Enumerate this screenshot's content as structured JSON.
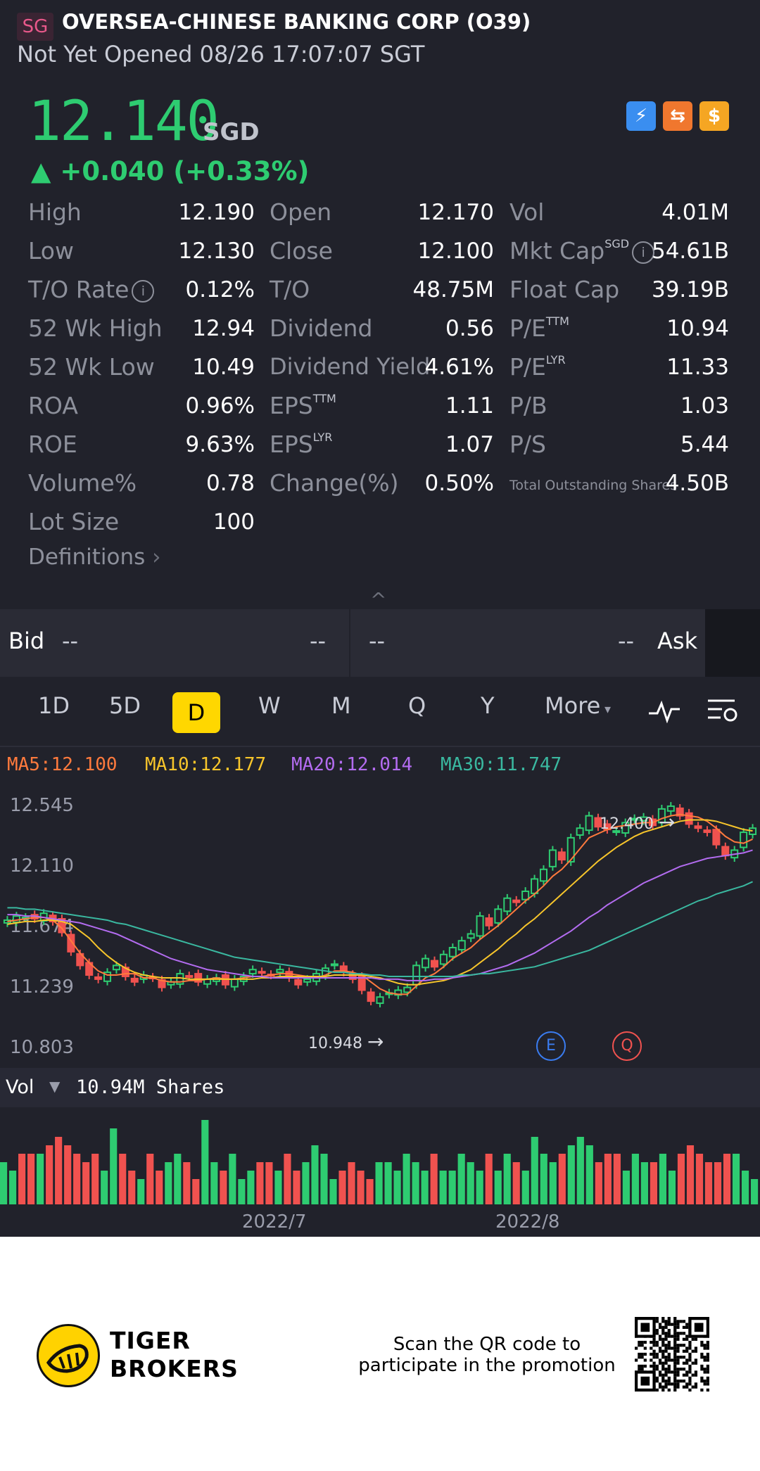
{
  "header": {
    "market_badge": "SG",
    "name": "OVERSEA-CHINESE BANKING CORP (O39)",
    "status": "Not Yet Opened 08/26 17:07:07 SGT"
  },
  "quote": {
    "price": "12.140",
    "currency": "SGD",
    "change": "▲ +0.040 (+0.33%)"
  },
  "stats": {
    "col1": [
      {
        "label": "High",
        "value": "12.190"
      },
      {
        "label": "Low",
        "value": "12.130"
      },
      {
        "label": "T/O Rate",
        "value": "0.12%"
      },
      {
        "label": "52 Wk High",
        "value": "12.94"
      },
      {
        "label": "52 Wk Low",
        "value": "10.49"
      },
      {
        "label": "ROA",
        "value": "0.96%"
      },
      {
        "label": "ROE",
        "value": "9.63%"
      },
      {
        "label": "Volume%",
        "value": "0.78"
      },
      {
        "label": "Lot Size",
        "value": "100"
      }
    ],
    "col2": [
      {
        "label": "Open",
        "value": "12.170"
      },
      {
        "label": "Close",
        "value": "12.100"
      },
      {
        "label": "T/O",
        "value": "48.75M"
      },
      {
        "label": "Dividend",
        "value": "0.56"
      },
      {
        "label": "Dividend Yield",
        "value": "4.61%"
      },
      {
        "label": "EPS",
        "sup": "TTM",
        "value": "1.11"
      },
      {
        "label": "EPS",
        "sup": "LYR",
        "value": "1.07"
      },
      {
        "label": "Change(%)",
        "value": "0.50%"
      }
    ],
    "col3": [
      {
        "label": "Vol",
        "value": "4.01M"
      },
      {
        "label": "Mkt Cap",
        "sup": "SGD",
        "value": "54.61B"
      },
      {
        "label": "Float Cap",
        "value": "39.19B"
      },
      {
        "label": "P/E",
        "sup": "TTM",
        "value": "10.94"
      },
      {
        "label": "P/E",
        "sup": "LYR",
        "value": "11.33"
      },
      {
        "label": "P/B",
        "value": "1.03"
      },
      {
        "label": "P/S",
        "value": "5.44"
      },
      {
        "label": "Total Outstanding Shares",
        "value": "4.50B"
      }
    ],
    "definitions": "Definitions"
  },
  "orderbook": {
    "bid_label": "Bid",
    "bid_price": "--",
    "bid_size": "--",
    "ask_price": "--",
    "ask_size": "--",
    "ask_label": "Ask"
  },
  "timeframes": [
    "1D",
    "5D",
    "D",
    "W",
    "M",
    "Q",
    "Y",
    "More"
  ],
  "active_timeframe": "D",
  "ma": [
    {
      "label": "MA5:12.100",
      "color": "#ff7a3d"
    },
    {
      "label": "MA10:12.177",
      "color": "#f7c52b"
    },
    {
      "label": "MA20:12.014",
      "color": "#b36cf0"
    },
    {
      "label": "MA30:11.747",
      "color": "#3ab8a0"
    }
  ],
  "chart_data": {
    "type": "candlestick",
    "y_axis_ticks": [
      "12.545",
      "12.110",
      "11.674",
      "11.239",
      "10.803"
    ],
    "ylim": [
      10.803,
      12.545
    ],
    "high_marker": "12.400",
    "low_marker": "10.948",
    "event_markers": [
      "E",
      "Q"
    ],
    "x_ticks": [
      "2022/7",
      "2022/8"
    ],
    "up_color": "#2ecc71",
    "down_color": "#f0524f",
    "close": [
      11.71,
      11.74,
      11.73,
      11.72,
      11.76,
      11.7,
      11.62,
      11.48,
      11.38,
      11.31,
      11.28,
      11.33,
      11.38,
      11.3,
      11.26,
      11.31,
      11.29,
      11.22,
      11.26,
      11.32,
      11.3,
      11.26,
      11.28,
      11.29,
      11.24,
      11.28,
      11.3,
      11.35,
      11.33,
      11.31,
      11.35,
      11.29,
      11.24,
      11.28,
      11.32,
      11.36,
      11.39,
      11.33,
      11.28,
      11.2,
      11.12,
      11.15,
      11.18,
      11.2,
      11.22,
      11.38,
      11.43,
      11.37,
      11.46,
      11.51,
      11.56,
      11.61,
      11.74,
      11.67,
      11.79,
      11.87,
      11.84,
      11.92,
      12.01,
      12.08,
      12.22,
      12.15,
      12.31,
      12.38,
      12.47,
      12.39,
      12.37,
      12.36,
      12.42,
      12.45,
      12.46,
      12.4,
      12.52,
      12.54,
      12.47,
      12.41,
      12.38,
      12.35,
      12.26,
      12.18,
      12.22,
      12.35,
      12.38
    ],
    "ma5": [
      11.7,
      11.71,
      11.72,
      11.73,
      11.73,
      11.71,
      11.65,
      11.56,
      11.47,
      11.4,
      11.34,
      11.31,
      11.31,
      11.32,
      11.32,
      11.29,
      11.29,
      11.27,
      11.26,
      11.26,
      11.27,
      11.27,
      11.28,
      11.29,
      11.28,
      11.28,
      11.29,
      11.3,
      11.3,
      11.31,
      11.32,
      11.32,
      11.31,
      11.3,
      11.29,
      11.31,
      11.34,
      11.34,
      11.33,
      11.31,
      11.26,
      11.21,
      11.18,
      11.17,
      11.17,
      11.23,
      11.29,
      11.32,
      11.37,
      11.43,
      11.47,
      11.51,
      11.57,
      11.62,
      11.67,
      11.73,
      11.79,
      11.85,
      11.9,
      11.96,
      12.03,
      12.08,
      12.15,
      12.23,
      12.31,
      12.34,
      12.37,
      12.39,
      12.4,
      12.41,
      12.42,
      12.42,
      12.45,
      12.47,
      12.48,
      12.47,
      12.46,
      12.43,
      12.38,
      12.32,
      12.28,
      12.27,
      12.3
    ],
    "ma10": [
      11.68,
      11.69,
      11.7,
      11.7,
      11.71,
      11.71,
      11.7,
      11.68,
      11.63,
      11.58,
      11.51,
      11.45,
      11.4,
      11.36,
      11.33,
      11.31,
      11.3,
      11.29,
      11.29,
      11.29,
      11.28,
      11.28,
      11.28,
      11.28,
      11.28,
      11.28,
      11.28,
      11.28,
      11.29,
      11.29,
      11.3,
      11.3,
      11.3,
      11.3,
      11.3,
      11.3,
      11.31,
      11.31,
      11.31,
      11.31,
      11.3,
      11.29,
      11.27,
      11.25,
      11.24,
      11.24,
      11.25,
      11.26,
      11.27,
      11.29,
      11.32,
      11.35,
      11.4,
      11.45,
      11.5,
      11.56,
      11.61,
      11.67,
      11.72,
      11.78,
      11.84,
      11.9,
      11.96,
      12.02,
      12.08,
      12.14,
      12.19,
      12.24,
      12.28,
      12.32,
      12.35,
      12.37,
      12.39,
      12.41,
      12.43,
      12.44,
      12.44,
      12.44,
      12.43,
      12.41,
      12.39,
      12.37,
      12.36
    ],
    "ma20": [
      11.75,
      11.75,
      11.74,
      11.74,
      11.73,
      11.72,
      11.71,
      11.7,
      11.69,
      11.67,
      11.65,
      11.63,
      11.61,
      11.58,
      11.55,
      11.52,
      11.49,
      11.46,
      11.43,
      11.41,
      11.39,
      11.37,
      11.35,
      11.34,
      11.33,
      11.32,
      11.31,
      11.3,
      11.3,
      11.29,
      11.29,
      11.29,
      11.29,
      11.29,
      11.29,
      11.29,
      11.29,
      11.29,
      11.29,
      11.29,
      11.29,
      11.28,
      11.28,
      11.28,
      11.27,
      11.27,
      11.27,
      11.28,
      11.28,
      11.29,
      11.3,
      11.31,
      11.32,
      11.34,
      11.36,
      11.38,
      11.41,
      11.44,
      11.47,
      11.51,
      11.55,
      11.59,
      11.63,
      11.68,
      11.73,
      11.77,
      11.82,
      11.86,
      11.9,
      11.94,
      11.98,
      12.01,
      12.04,
      12.07,
      12.1,
      12.12,
      12.14,
      12.16,
      12.17,
      12.18,
      12.19,
      12.2,
      12.22
    ],
    "ma30": [
      11.8,
      11.8,
      11.79,
      11.79,
      11.78,
      11.77,
      11.76,
      11.75,
      11.74,
      11.73,
      11.72,
      11.71,
      11.69,
      11.68,
      11.66,
      11.64,
      11.62,
      11.6,
      11.58,
      11.56,
      11.54,
      11.52,
      11.5,
      11.48,
      11.46,
      11.44,
      11.43,
      11.42,
      11.41,
      11.4,
      11.39,
      11.38,
      11.37,
      11.36,
      11.35,
      11.34,
      11.33,
      11.33,
      11.32,
      11.32,
      11.31,
      11.31,
      11.3,
      11.3,
      11.3,
      11.3,
      11.3,
      11.3,
      11.3,
      11.3,
      11.31,
      11.31,
      11.32,
      11.32,
      11.33,
      11.34,
      11.35,
      11.36,
      11.37,
      11.39,
      11.41,
      11.43,
      11.45,
      11.47,
      11.49,
      11.52,
      11.55,
      11.58,
      11.61,
      11.64,
      11.67,
      11.7,
      11.73,
      11.76,
      11.79,
      11.82,
      11.85,
      11.87,
      11.9,
      11.92,
      11.94,
      11.96,
      11.99
    ]
  },
  "volume": {
    "label": "Vol",
    "value": "10.94M Shares",
    "bars": [
      0.5,
      0.4,
      0.6,
      0.6,
      0.6,
      0.7,
      0.8,
      0.7,
      0.6,
      0.5,
      0.6,
      0.4,
      0.9,
      0.6,
      0.4,
      0.3,
      0.6,
      0.4,
      0.5,
      0.6,
      0.5,
      0.3,
      1.0,
      0.5,
      0.4,
      0.6,
      0.3,
      0.4,
      0.5,
      0.5,
      0.4,
      0.6,
      0.4,
      0.5,
      0.7,
      0.6,
      0.3,
      0.4,
      0.5,
      0.4,
      0.3,
      0.5,
      0.5,
      0.4,
      0.6,
      0.5,
      0.4,
      0.6,
      0.4,
      0.4,
      0.6,
      0.5,
      0.4,
      0.6,
      0.4,
      0.6,
      0.5,
      0.4,
      0.8,
      0.6,
      0.5,
      0.6,
      0.7,
      0.8,
      0.7,
      0.5,
      0.6,
      0.6,
      0.4,
      0.6,
      0.5,
      0.5,
      0.6,
      0.4,
      0.6,
      0.7,
      0.6,
      0.5,
      0.5,
      0.6,
      0.6,
      0.4,
      0.3
    ]
  },
  "footer": {
    "brand_line1": "TIGER",
    "brand_line2": "BROKERS",
    "scan_line1": "Scan the QR code to",
    "scan_line2": "participate in the promotion"
  }
}
